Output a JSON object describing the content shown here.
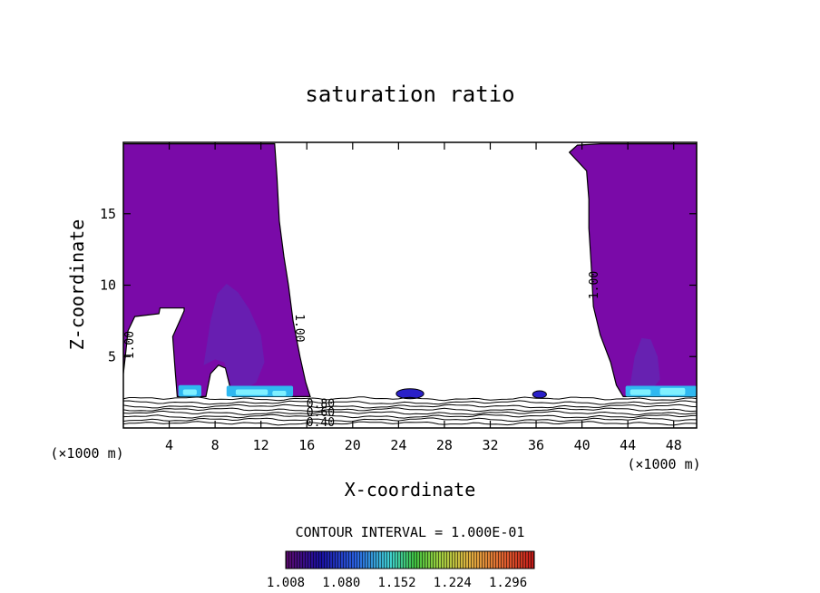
{
  "chart_data": {
    "type": "contour",
    "title": "saturation ratio",
    "xlabel": "X-coordinate",
    "ylabel": "Z-coordinate",
    "x_unit": "(×1000 m)",
    "y_unit": "(×1000 m)",
    "xlim": [
      0,
      50
    ],
    "ylim": [
      0,
      20
    ],
    "x_ticks": [
      4,
      8,
      12,
      16,
      20,
      24,
      28,
      32,
      36,
      40,
      44,
      48
    ],
    "x_tick_labels": [
      "4",
      "8",
      "12",
      "16",
      "20",
      "24",
      "28",
      "32",
      "36",
      "40",
      "44",
      "48"
    ],
    "y_ticks": [
      5,
      10,
      15
    ],
    "y_tick_labels": [
      "5",
      "10",
      "15"
    ],
    "contour_interval_text": "CONTOUR INTERVAL = 1.000E-01",
    "contour_labels": [
      {
        "text": "1.00",
        "x": 0.6,
        "y": 5.8,
        "rotate": -90
      },
      {
        "text": "1.00",
        "x": 15.3,
        "y": 7.0,
        "rotate": 90
      },
      {
        "text": "1.00",
        "x": 41.1,
        "y": 10.0,
        "rotate": -90
      },
      {
        "text": "0.80",
        "x": 17.2,
        "y": 1.65,
        "rotate": 0
      },
      {
        "text": "0.60",
        "x": 17.2,
        "y": 1.05,
        "rotate": 0
      },
      {
        "text": "0.40",
        "x": 17.2,
        "y": 0.35,
        "rotate": 0
      }
    ],
    "colorbar": {
      "min": 1.008,
      "max": 1.33,
      "ticks": [
        "1.008",
        "1.080",
        "1.152",
        "1.224",
        "1.296"
      ]
    },
    "colors": {
      "supersaturated_fill": "#7a0aa8",
      "enhanced_fill": "#5a30b8",
      "ice_blue": "#2fb8f0",
      "ice_cyan": "#7ff0ff",
      "deep_blue": "#2a20c8"
    },
    "regions": {
      "left_column": [
        [
          0,
          19.9
        ],
        [
          13.2,
          19.9
        ],
        [
          13.4,
          17.5
        ],
        [
          13.6,
          14.5
        ],
        [
          14.0,
          12.0
        ],
        [
          14.4,
          10.0
        ],
        [
          14.8,
          7.5
        ],
        [
          15.4,
          5.0
        ],
        [
          15.9,
          3.2
        ],
        [
          16.3,
          2.2
        ],
        [
          9.5,
          2.2
        ],
        [
          8.9,
          4.2
        ],
        [
          8.3,
          4.4
        ],
        [
          7.6,
          3.8
        ],
        [
          7.2,
          2.2
        ],
        [
          4.7,
          2.2
        ],
        [
          4.5,
          4.2
        ],
        [
          4.3,
          6.4
        ],
        [
          5.3,
          8.2
        ],
        [
          5.3,
          8.4
        ],
        [
          3.2,
          8.4
        ],
        [
          3.1,
          8.0
        ],
        [
          1.0,
          7.8
        ],
        [
          0.4,
          6.8
        ],
        [
          0.2,
          5.2
        ],
        [
          0,
          3.8
        ]
      ],
      "right_column": [
        [
          38.9,
          19.3
        ],
        [
          39.6,
          19.8
        ],
        [
          41.6,
          19.9
        ],
        [
          50,
          19.9
        ],
        [
          50,
          2.2
        ],
        [
          43.6,
          2.2
        ],
        [
          43.0,
          3.0
        ],
        [
          42.5,
          4.6
        ],
        [
          41.6,
          6.5
        ],
        [
          41.0,
          8.5
        ],
        [
          40.8,
          11.5
        ],
        [
          40.6,
          14.0
        ],
        [
          40.6,
          16.0
        ],
        [
          40.4,
          18.0
        ]
      ],
      "bubbles": [
        {
          "cx": 25.0,
          "cy": 2.4,
          "rx": 1.2,
          "ry": 0.35
        },
        {
          "cx": 36.3,
          "cy": 2.35,
          "rx": 0.6,
          "ry": 0.25
        }
      ]
    }
  }
}
